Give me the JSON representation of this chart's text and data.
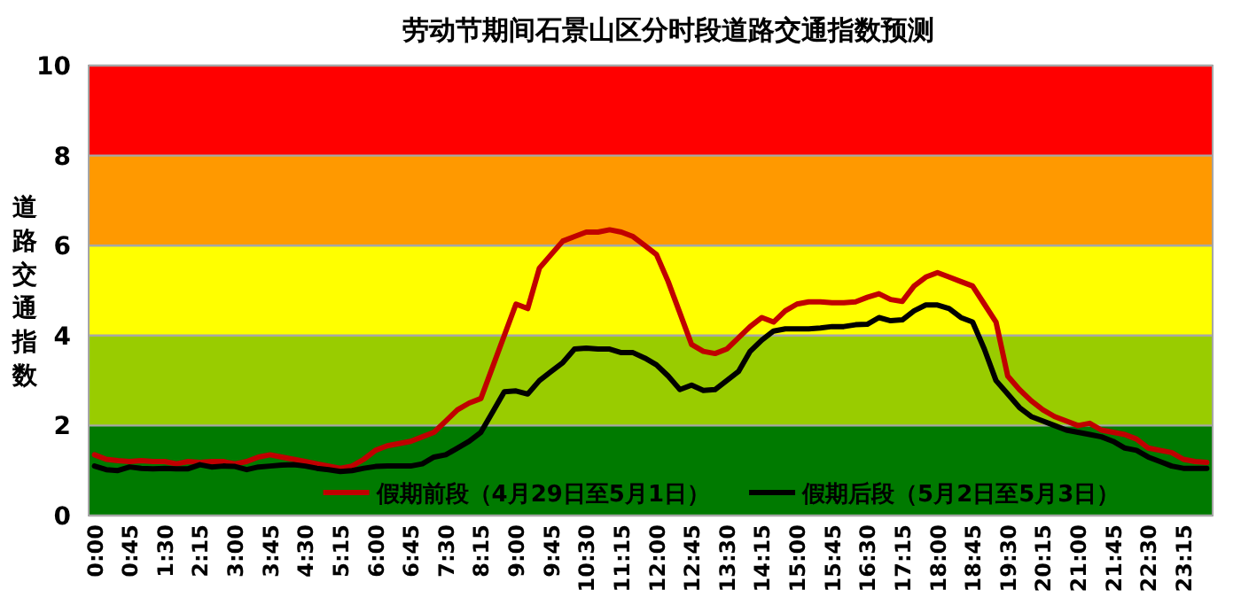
{
  "chart_data": {
    "type": "line",
    "title": "劳动节期间石景山区分时段道路交通指数预测",
    "ylabel": "道路交通指数",
    "categories": [
      "0:00",
      null,
      null,
      "0:45",
      null,
      null,
      "1:30",
      null,
      null,
      "2:15",
      null,
      null,
      "3:00",
      null,
      null,
      "3:45",
      null,
      null,
      "4:30",
      null,
      null,
      "5:15",
      null,
      null,
      "6:00",
      null,
      null,
      "6:45",
      null,
      null,
      "7:30",
      null,
      null,
      "8:15",
      null,
      null,
      "9:00",
      null,
      null,
      "9:45",
      null,
      null,
      "10:30",
      null,
      null,
      "11:15",
      null,
      null,
      "12:00",
      null,
      null,
      "12:45",
      null,
      null,
      "13:30",
      null,
      null,
      "14:15",
      null,
      null,
      "15:00",
      null,
      null,
      "15:45",
      null,
      null,
      "16:30",
      null,
      null,
      "17:15",
      null,
      null,
      "18:00",
      null,
      null,
      "18:45",
      null,
      null,
      "19:30",
      null,
      null,
      "20:15",
      null,
      null,
      "21:00",
      null,
      null,
      "21:45",
      null,
      null,
      "22:30",
      null,
      null,
      "23:15",
      null,
      null
    ],
    "series": [
      {
        "name": "假期前段（4月29日至5月1日）",
        "color": "#c00000",
        "values": [
          1.35,
          1.25,
          1.22,
          1.2,
          1.22,
          1.2,
          1.2,
          1.15,
          1.2,
          1.18,
          1.2,
          1.2,
          1.15,
          1.2,
          1.3,
          1.35,
          1.3,
          1.25,
          1.2,
          1.15,
          1.1,
          1.05,
          1.1,
          1.25,
          1.45,
          1.55,
          1.6,
          1.65,
          1.75,
          1.85,
          2.1,
          2.35,
          2.5,
          2.6,
          3.3,
          4.0,
          4.7,
          4.6,
          5.5,
          5.8,
          6.1,
          6.2,
          6.3,
          6.3,
          6.35,
          6.3,
          6.2,
          6.0,
          5.8,
          5.2,
          4.5,
          3.8,
          3.65,
          3.6,
          3.7,
          3.95,
          4.2,
          4.4,
          4.3,
          4.55,
          4.7,
          4.75,
          4.75,
          4.73,
          4.73,
          4.75,
          4.85,
          4.93,
          4.8,
          4.76,
          5.1,
          5.3,
          5.4,
          5.3,
          5.2,
          5.1,
          4.7,
          4.3,
          3.1,
          2.8,
          2.55,
          2.35,
          2.2,
          2.1,
          2.0,
          2.05,
          1.9,
          1.85,
          1.8,
          1.7,
          1.5,
          1.45,
          1.4,
          1.25,
          1.2,
          1.18
        ]
      },
      {
        "name": "假期后段（5月2日至5月3日）",
        "color": "#000000",
        "values": [
          1.1,
          1.02,
          1.0,
          1.08,
          1.05,
          1.04,
          1.05,
          1.04,
          1.04,
          1.13,
          1.08,
          1.1,
          1.09,
          1.02,
          1.08,
          1.1,
          1.12,
          1.13,
          1.1,
          1.05,
          1.02,
          0.98,
          1.0,
          1.05,
          1.09,
          1.1,
          1.1,
          1.1,
          1.15,
          1.3,
          1.35,
          1.5,
          1.65,
          1.85,
          2.3,
          2.75,
          2.77,
          2.7,
          3.0,
          3.2,
          3.4,
          3.7,
          3.72,
          3.7,
          3.7,
          3.62,
          3.62,
          3.5,
          3.35,
          3.1,
          2.8,
          2.9,
          2.78,
          2.8,
          3.0,
          3.2,
          3.65,
          3.9,
          4.1,
          4.15,
          4.15,
          4.15,
          4.17,
          4.2,
          4.2,
          4.24,
          4.25,
          4.4,
          4.33,
          4.35,
          4.55,
          4.68,
          4.68,
          4.6,
          4.4,
          4.3,
          3.7,
          3.0,
          2.7,
          2.4,
          2.2,
          2.1,
          2.0,
          1.9,
          1.85,
          1.8,
          1.75,
          1.65,
          1.5,
          1.45,
          1.3,
          1.2,
          1.1,
          1.05,
          1.05,
          1.05
        ]
      }
    ],
    "ylim": [
      0,
      10
    ],
    "yticks": [
      0,
      2,
      4,
      6,
      8,
      10
    ],
    "grid": "y",
    "legend": "bottom",
    "line_style": "solid",
    "marker": "none",
    "bands": [
      {
        "axis": "y",
        "from": 0,
        "to": 2,
        "color": "#007a00"
      },
      {
        "axis": "y",
        "from": 2,
        "to": 4,
        "color": "#99cc00"
      },
      {
        "axis": "y",
        "from": 4,
        "to": 6,
        "color": "#ffff00"
      },
      {
        "axis": "y",
        "from": 6,
        "to": 8,
        "color": "#ff9900"
      },
      {
        "axis": "y",
        "from": 8,
        "to": 10,
        "color": "#ff0000"
      }
    ]
  }
}
